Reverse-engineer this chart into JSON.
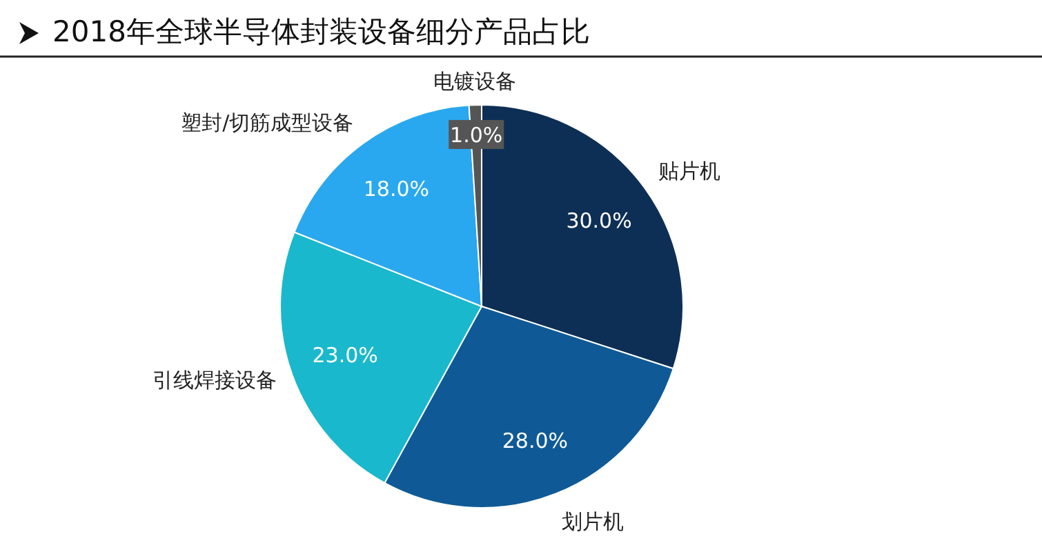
{
  "chart_data": {
    "type": "pie",
    "title": "2018年全球半导体封装设备细分产品占比",
    "categories": [
      "贴片机",
      "划片机",
      "引线焊接设备",
      "塑封/切筋成型设备",
      "电镀设备"
    ],
    "values": [
      30.0,
      28.0,
      23.0,
      18.0,
      1.0
    ],
    "colors": [
      "#0d2f55",
      "#0f5a96",
      "#1ab8cc",
      "#29a8ef",
      "#555555"
    ],
    "value_labels": [
      "30.0%",
      "28.0%",
      "23.0%",
      "18.0%",
      "1.0%"
    ]
  }
}
